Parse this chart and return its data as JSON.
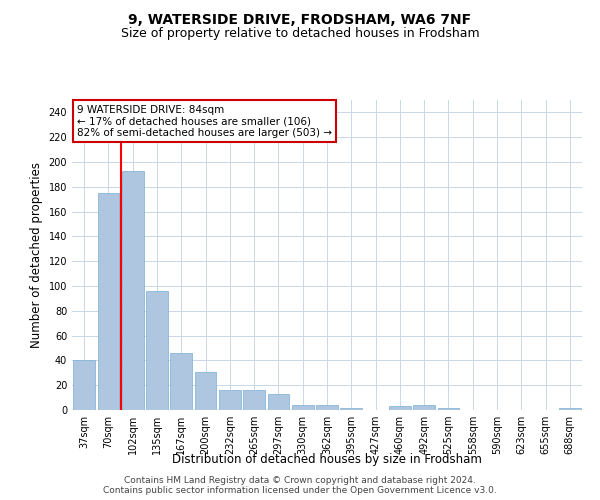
{
  "title": "9, WATERSIDE DRIVE, FRODSHAM, WA6 7NF",
  "subtitle": "Size of property relative to detached houses in Frodsham",
  "xlabel": "Distribution of detached houses by size in Frodsham",
  "ylabel": "Number of detached properties",
  "categories": [
    "37sqm",
    "70sqm",
    "102sqm",
    "135sqm",
    "167sqm",
    "200sqm",
    "232sqm",
    "265sqm",
    "297sqm",
    "330sqm",
    "362sqm",
    "395sqm",
    "427sqm",
    "460sqm",
    "492sqm",
    "525sqm",
    "558sqm",
    "590sqm",
    "623sqm",
    "655sqm",
    "688sqm"
  ],
  "values": [
    40,
    175,
    193,
    96,
    46,
    31,
    16,
    16,
    13,
    4,
    4,
    2,
    0,
    3,
    4,
    2,
    0,
    0,
    0,
    0,
    2
  ],
  "bar_color": "#aec6e0",
  "bar_edge_color": "#7aafd4",
  "red_line_x": 1.5,
  "annotation_line1": "9 WATERSIDE DRIVE: 84sqm",
  "annotation_line2": "← 17% of detached houses are smaller (106)",
  "annotation_line3": "82% of semi-detached houses are larger (503) →",
  "annotation_box_color": "#ffffff",
  "annotation_box_edge_color": "#cc0000",
  "ylim": [
    0,
    250
  ],
  "yticks": [
    0,
    20,
    40,
    60,
    80,
    100,
    120,
    140,
    160,
    180,
    200,
    220,
    240
  ],
  "footer_line1": "Contains HM Land Registry data © Crown copyright and database right 2024.",
  "footer_line2": "Contains public sector information licensed under the Open Government Licence v3.0.",
  "bg_color": "#ffffff",
  "grid_color": "#c8d8e8",
  "title_fontsize": 10,
  "subtitle_fontsize": 9,
  "axis_label_fontsize": 8.5,
  "tick_fontsize": 7,
  "annotation_fontsize": 7.5,
  "footer_fontsize": 6.5
}
